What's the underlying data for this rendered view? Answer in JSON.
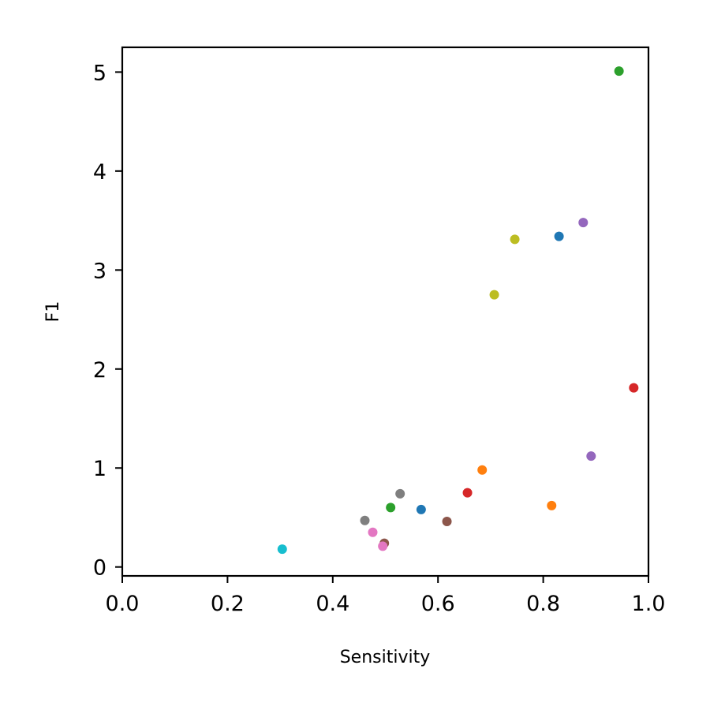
{
  "chart_data": {
    "type": "scatter",
    "title": "",
    "xlabel": "Sensitivity",
    "ylabel": "F1",
    "xlim": [
      0.0,
      1.0
    ],
    "ylim": [
      -0.09,
      5.25
    ],
    "xticks": [
      0.0,
      0.2,
      0.4,
      0.6,
      0.8,
      1.0
    ],
    "xtick_labels": [
      "0.0",
      "0.2",
      "0.4",
      "0.6",
      "0.8",
      "1.0"
    ],
    "yticks": [
      0,
      1,
      2,
      3,
      4,
      5
    ],
    "ytick_labels": [
      "0",
      "1",
      "2",
      "3",
      "4",
      "5"
    ],
    "grid": false,
    "legend": "none",
    "points": [
      {
        "x": 0.944,
        "y": 5.01,
        "color": "#2ca02c"
      },
      {
        "x": 0.876,
        "y": 3.48,
        "color": "#9467bd"
      },
      {
        "x": 0.83,
        "y": 3.34,
        "color": "#1f77b4"
      },
      {
        "x": 0.746,
        "y": 3.31,
        "color": "#bcbd22"
      },
      {
        "x": 0.707,
        "y": 2.75,
        "color": "#bcbd22"
      },
      {
        "x": 0.972,
        "y": 1.81,
        "color": "#d62728"
      },
      {
        "x": 0.891,
        "y": 1.12,
        "color": "#9467bd"
      },
      {
        "x": 0.684,
        "y": 0.98,
        "color": "#ff7f0e"
      },
      {
        "x": 0.816,
        "y": 0.62,
        "color": "#ff7f0e"
      },
      {
        "x": 0.656,
        "y": 0.75,
        "color": "#d62728"
      },
      {
        "x": 0.528,
        "y": 0.74,
        "color": "#7f7f7f"
      },
      {
        "x": 0.51,
        "y": 0.6,
        "color": "#2ca02c"
      },
      {
        "x": 0.568,
        "y": 0.58,
        "color": "#1f77b4"
      },
      {
        "x": 0.617,
        "y": 0.46,
        "color": "#8c564b"
      },
      {
        "x": 0.461,
        "y": 0.47,
        "color": "#7f7f7f"
      },
      {
        "x": 0.476,
        "y": 0.35,
        "color": "#e377c2"
      },
      {
        "x": 0.498,
        "y": 0.24,
        "color": "#8c564b"
      },
      {
        "x": 0.495,
        "y": 0.21,
        "color": "#e377c2"
      },
      {
        "x": 0.304,
        "y": 0.18,
        "color": "#17becf"
      }
    ]
  }
}
